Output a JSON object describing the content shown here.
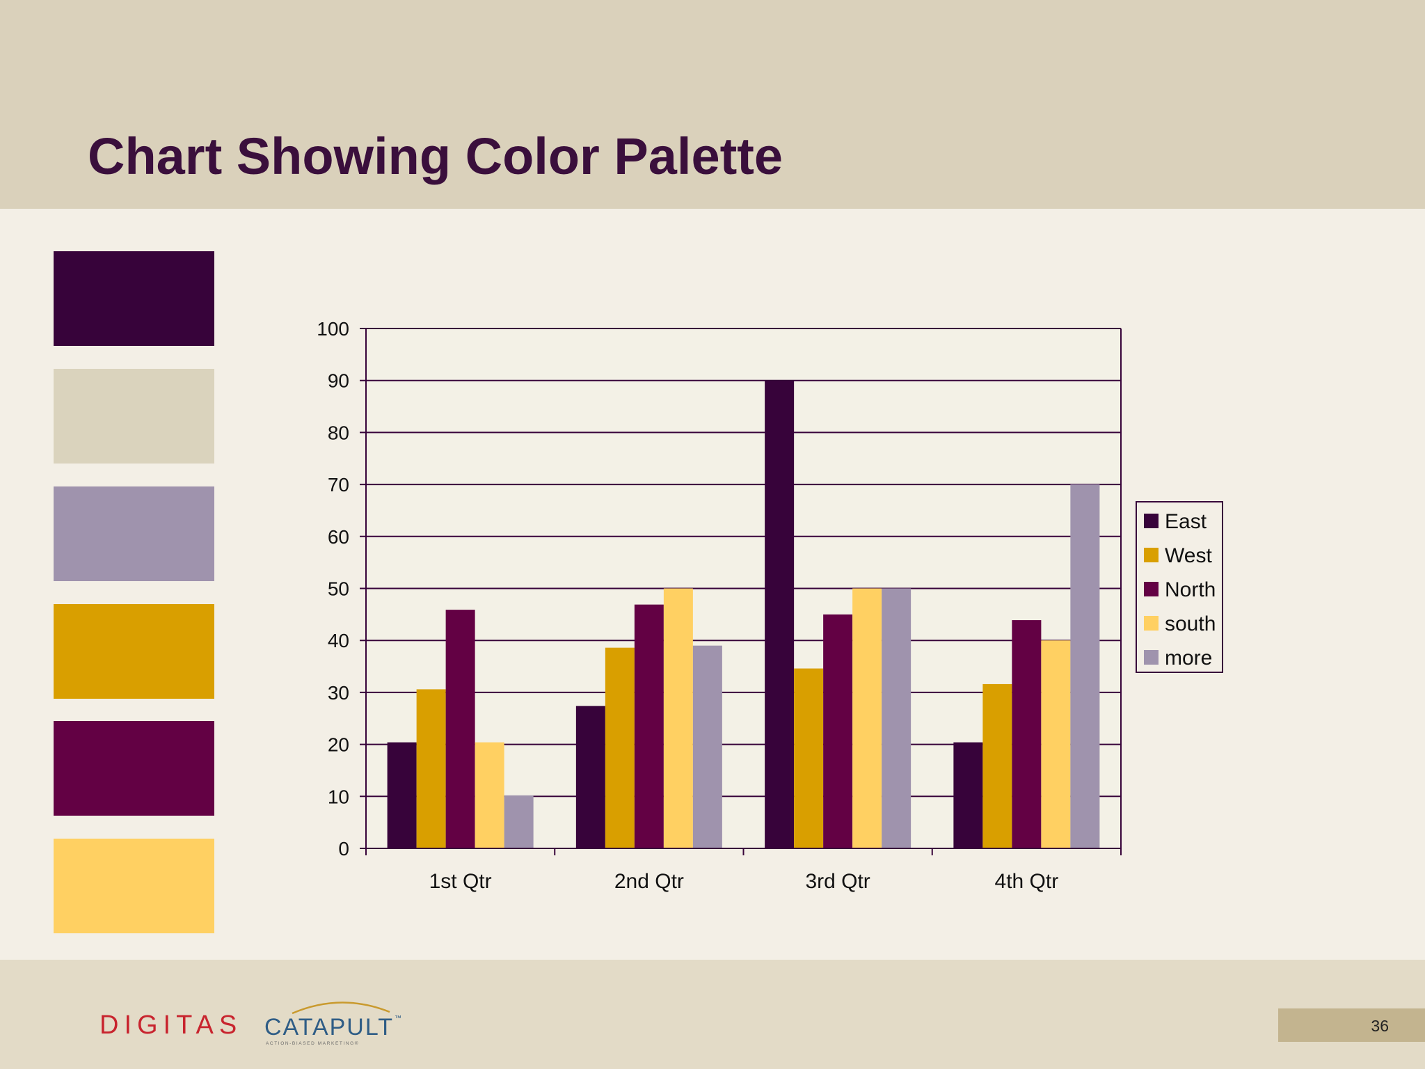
{
  "slide": {
    "title": "Chart Showing Color Palette",
    "page_number": "36"
  },
  "palette": [
    "#37033a",
    "#dad3bd",
    "#9f93ad",
    "#d99f00",
    "#630144",
    "#ffd062"
  ],
  "logos": {
    "digitas": "DIGITAS",
    "catapult": "CATAPULT",
    "catapult_tm": "™",
    "catapult_tagline": "ACTION-BIASED MARKETING®"
  },
  "chart_data": {
    "type": "bar",
    "title": "",
    "xlabel": "",
    "ylabel": "",
    "categories": [
      "1st Qtr",
      "2nd Qtr",
      "3rd Qtr",
      "4th Qtr"
    ],
    "series": [
      {
        "name": "East",
        "color": "#37033a",
        "values": [
          20.4,
          27.4,
          90,
          20.4
        ]
      },
      {
        "name": "West",
        "color": "#d99f00",
        "values": [
          30.6,
          38.6,
          34.6,
          31.6
        ]
      },
      {
        "name": "North",
        "color": "#630144",
        "values": [
          45.9,
          46.9,
          45,
          43.9
        ]
      },
      {
        "name": "south",
        "color": "#ffd062",
        "values": [
          20.4,
          50,
          50,
          40
        ]
      },
      {
        "name": "more",
        "color": "#9f93ad",
        "values": [
          10.2,
          39,
          50,
          70
        ]
      }
    ],
    "ylim": [
      0,
      100
    ],
    "yticks": [
      0,
      10,
      20,
      30,
      40,
      50,
      60,
      70,
      80,
      90,
      100
    ],
    "grid": true,
    "legend_position": "right"
  }
}
